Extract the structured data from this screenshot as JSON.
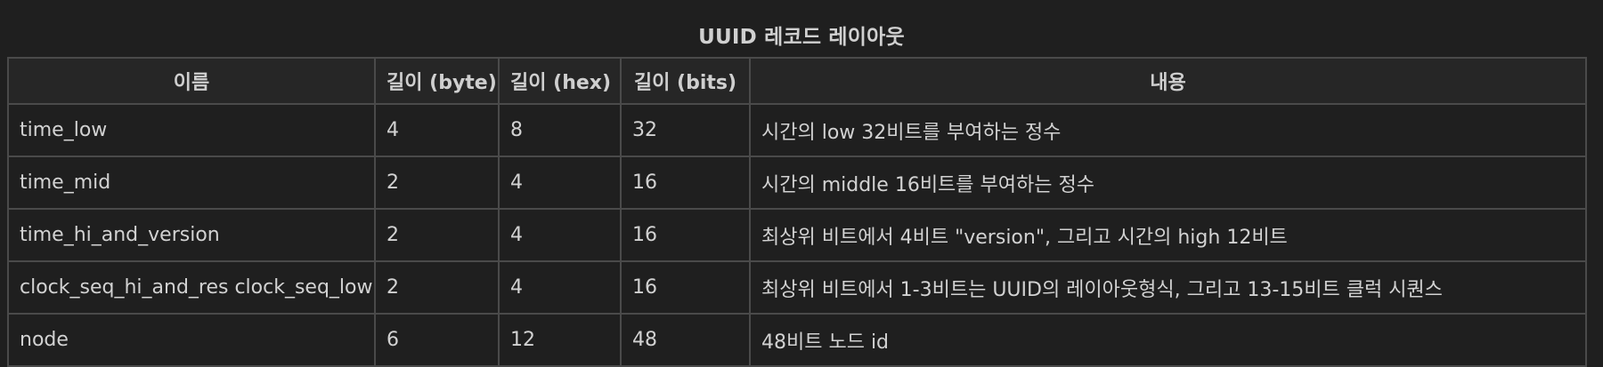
{
  "table": {
    "caption": "UUID 레코드 레이아웃",
    "headers": [
      "이름",
      "길이 (byte)",
      "길이 (hex)",
      "길이 (bits)",
      "내용"
    ],
    "rows": [
      [
        "time_low",
        "4",
        "8",
        "32",
        "시간의 low 32비트를 부여하는 정수"
      ],
      [
        "time_mid",
        "2",
        "4",
        "16",
        "시간의 middle 16비트를 부여하는 정수"
      ],
      [
        "time_hi_and_version",
        "2",
        "4",
        "16",
        "최상위 비트에서 4비트 \"version\", 그리고 시간의 high 12비트"
      ],
      [
        "clock_seq_hi_and_res clock_seq_low",
        "2",
        "4",
        "16",
        "최상위 비트에서 1-3비트는 UUID의 레이아웃형식, 그리고 13-15비트 클럭 시퀀스"
      ],
      [
        "node",
        "6",
        "12",
        "48",
        "48비트 노드 id"
      ]
    ]
  }
}
